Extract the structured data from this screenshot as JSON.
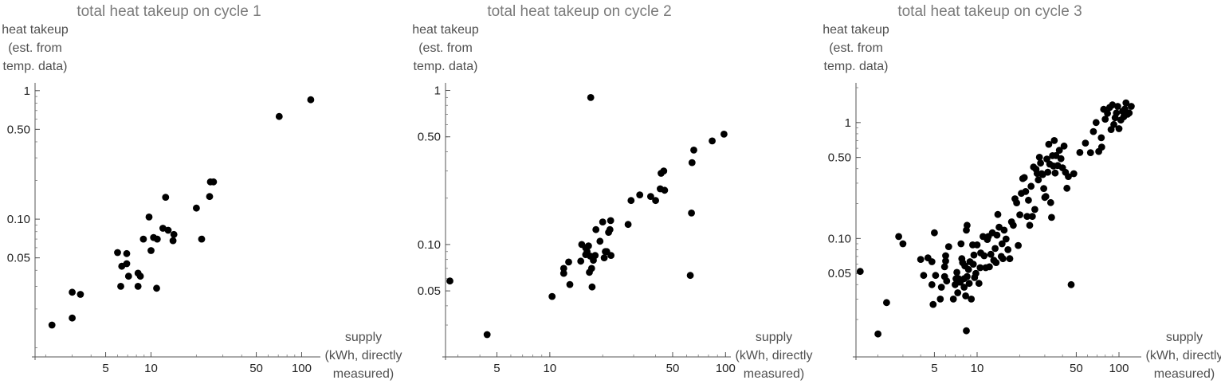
{
  "chart_data": [
    {
      "type": "scatter",
      "title": "total heat takeup on cycle 1",
      "ylabel": [
        "heat takeup",
        "(est. from",
        "temp. data)"
      ],
      "xlabel": [
        "supply",
        "(kWh, directly",
        "measured)"
      ],
      "xscale": "log",
      "yscale": "log",
      "xlim": [
        1.7,
        130
      ],
      "ylim": [
        0.0095,
        1.15
      ],
      "xticks": [
        5,
        10,
        50,
        100
      ],
      "xtick_labels": [
        "5",
        "10",
        "50",
        "100"
      ],
      "yticks": [
        0.05,
        0.1,
        0.5,
        1
      ],
      "ytick_labels": [
        "0.05",
        "0.10",
        "0.50",
        "1"
      ],
      "grid": false,
      "points": [
        [
          2.2,
          0.015
        ],
        [
          3.0,
          0.017
        ],
        [
          3.0,
          0.027
        ],
        [
          3.4,
          0.026
        ],
        [
          6.0,
          0.055
        ],
        [
          6.3,
          0.03
        ],
        [
          6.4,
          0.043
        ],
        [
          6.9,
          0.054
        ],
        [
          6.9,
          0.045
        ],
        [
          7.1,
          0.036
        ],
        [
          8.2,
          0.03
        ],
        [
          8.2,
          0.038
        ],
        [
          8.5,
          0.036
        ],
        [
          8.9,
          0.07
        ],
        [
          9.7,
          0.104
        ],
        [
          10.0,
          0.057
        ],
        [
          10.4,
          0.072
        ],
        [
          10.9,
          0.029
        ],
        [
          11.0,
          0.07
        ],
        [
          12.0,
          0.085
        ],
        [
          12.5,
          0.148
        ],
        [
          13.0,
          0.082
        ],
        [
          14.0,
          0.068
        ],
        [
          14.2,
          0.076
        ],
        [
          20.0,
          0.122
        ],
        [
          21.7,
          0.07
        ],
        [
          24.5,
          0.15
        ],
        [
          24.8,
          0.195
        ],
        [
          26.0,
          0.195
        ],
        [
          71.0,
          0.63
        ],
        [
          115.0,
          0.85
        ]
      ]
    },
    {
      "type": "scatter",
      "title": "total heat takeup on cycle 2",
      "ylabel": [
        "heat takeup",
        "(est. from",
        "temp. data)"
      ],
      "xlabel": [
        "supply",
        "(kWh, directly",
        "measured)"
      ],
      "xscale": "log",
      "yscale": "log",
      "xlim": [
        2.55,
        105
      ],
      "ylim": [
        0.0205,
        1.12
      ],
      "xticks": [
        5,
        10,
        50,
        100
      ],
      "xtick_labels": [
        "5",
        "10",
        "50",
        "100"
      ],
      "yticks": [
        0.05,
        0.1,
        0.5,
        1
      ],
      "ytick_labels": [
        "0.05",
        "0.10",
        "0.50",
        "1"
      ],
      "grid": false,
      "points": [
        [
          2.7,
          0.058
        ],
        [
          4.4,
          0.026
        ],
        [
          10.3,
          0.046
        ],
        [
          12.0,
          0.065
        ],
        [
          12.0,
          0.07
        ],
        [
          12.8,
          0.077
        ],
        [
          13.0,
          0.055
        ],
        [
          15.0,
          0.078
        ],
        [
          15.2,
          0.1
        ],
        [
          16.0,
          0.086
        ],
        [
          16.0,
          0.095
        ],
        [
          16.3,
          0.09
        ],
        [
          16.6,
          0.098
        ],
        [
          16.8,
          0.066
        ],
        [
          17.0,
          0.084
        ],
        [
          17.3,
          0.07
        ],
        [
          17.4,
          0.053
        ],
        [
          17.7,
          0.079
        ],
        [
          18.1,
          0.085
        ],
        [
          18.3,
          0.125
        ],
        [
          19.3,
          0.105
        ],
        [
          20.0,
          0.14
        ],
        [
          20.4,
          0.082
        ],
        [
          20.7,
          0.09
        ],
        [
          21.1,
          0.09
        ],
        [
          21.6,
          0.12
        ],
        [
          22.0,
          0.125
        ],
        [
          22.2,
          0.143
        ],
        [
          22.3,
          0.085
        ],
        [
          17.1,
          0.9
        ],
        [
          27.9,
          0.135
        ],
        [
          29.0,
          0.193
        ],
        [
          32.5,
          0.21
        ],
        [
          37.5,
          0.205
        ],
        [
          40.0,
          0.193
        ],
        [
          42.5,
          0.23
        ],
        [
          43.0,
          0.29
        ],
        [
          44.5,
          0.3
        ],
        [
          45.0,
          0.225
        ],
        [
          63.0,
          0.063
        ],
        [
          64.0,
          0.16
        ],
        [
          64.5,
          0.34
        ],
        [
          66.0,
          0.41
        ],
        [
          84.0,
          0.47
        ],
        [
          98.0,
          0.52
        ]
      ]
    },
    {
      "type": "scatter",
      "title": "total heat takeup on cycle 3",
      "ylabel": [
        "heat takeup",
        "(est. from",
        "temp. data)"
      ],
      "xlabel": [
        "supply",
        "(kWh, directly",
        "measured)"
      ],
      "xscale": "log",
      "yscale": "log",
      "xlim": [
        1.4,
        140
      ],
      "ylim": [
        0.0108,
        2.2
      ],
      "xticks": [
        5,
        10,
        50,
        100
      ],
      "xtick_labels": [
        "5",
        "10",
        "50",
        "100"
      ],
      "yticks": [
        0.05,
        0.1,
        0.5,
        1
      ],
      "ytick_labels": [
        "0.05",
        "0.10",
        "0.50",
        "1"
      ],
      "grid": false,
      "points": [
        [
          1.5,
          0.052
        ],
        [
          2.0,
          0.015
        ],
        [
          2.3,
          0.028
        ],
        [
          2.8,
          0.104
        ],
        [
          3.0,
          0.09
        ],
        [
          4.0,
          0.066
        ],
        [
          4.2,
          0.048
        ],
        [
          4.5,
          0.068
        ],
        [
          4.8,
          0.04
        ],
        [
          4.8,
          0.063
        ],
        [
          4.9,
          0.027
        ],
        [
          5.0,
          0.112
        ],
        [
          5.1,
          0.048
        ],
        [
          5.5,
          0.03
        ],
        [
          5.6,
          0.038
        ],
        [
          5.9,
          0.047
        ],
        [
          5.9,
          0.057
        ],
        [
          6.0,
          0.064
        ],
        [
          6.0,
          0.071
        ],
        [
          6.1,
          0.043
        ],
        [
          6.3,
          0.085
        ],
        [
          6.8,
          0.03
        ],
        [
          7.0,
          0.04
        ],
        [
          7.1,
          0.045
        ],
        [
          7.2,
          0.051
        ],
        [
          7.3,
          0.034
        ],
        [
          7.4,
          0.045
        ],
        [
          7.6,
          0.042
        ],
        [
          7.7,
          0.09
        ],
        [
          7.8,
          0.067
        ],
        [
          7.9,
          0.062
        ],
        [
          8.1,
          0.038
        ],
        [
          8.1,
          0.045
        ],
        [
          8.2,
          0.058
        ],
        [
          8.3,
          0.032
        ],
        [
          8.4,
          0.118
        ],
        [
          8.4,
          0.016
        ],
        [
          8.5,
          0.13
        ],
        [
          8.5,
          0.047
        ],
        [
          8.7,
          0.054
        ],
        [
          8.8,
          0.041
        ],
        [
          8.9,
          0.063
        ],
        [
          9.1,
          0.03
        ],
        [
          9.3,
          0.088
        ],
        [
          9.4,
          0.06
        ],
        [
          9.5,
          0.072
        ],
        [
          9.6,
          0.046
        ],
        [
          9.8,
          0.05
        ],
        [
          10.0,
          0.088
        ],
        [
          10.3,
          0.041
        ],
        [
          10.5,
          0.056
        ],
        [
          10.6,
          0.075
        ],
        [
          11.0,
          0.104
        ],
        [
          11.2,
          0.071
        ],
        [
          11.5,
          0.056
        ],
        [
          11.8,
          0.098
        ],
        [
          12.0,
          0.104
        ],
        [
          12.2,
          0.057
        ],
        [
          12.5,
          0.073
        ],
        [
          12.8,
          0.112
        ],
        [
          13.1,
          0.065
        ],
        [
          13.4,
          0.082
        ],
        [
          13.6,
          0.062
        ],
        [
          13.8,
          0.107
        ],
        [
          14.0,
          0.161
        ],
        [
          14.3,
          0.125
        ],
        [
          14.8,
          0.07
        ],
        [
          15.0,
          0.09
        ],
        [
          15.2,
          0.067
        ],
        [
          15.5,
          0.118
        ],
        [
          16.0,
          0.099
        ],
        [
          16.5,
          0.08
        ],
        [
          17.0,
          0.067
        ],
        [
          17.5,
          0.139
        ],
        [
          18.0,
          0.13
        ],
        [
          18.5,
          0.22
        ],
        [
          19.0,
          0.203
        ],
        [
          19.5,
          0.087
        ],
        [
          20.0,
          0.16
        ],
        [
          20.5,
          0.245
        ],
        [
          21.0,
          0.329
        ],
        [
          21.5,
          0.335
        ],
        [
          22.0,
          0.254
        ],
        [
          22.5,
          0.155
        ],
        [
          23.0,
          0.214
        ],
        [
          23.5,
          0.13
        ],
        [
          24.0,
          0.282
        ],
        [
          24.5,
          0.155
        ],
        [
          25.0,
          0.413
        ],
        [
          25.5,
          0.178
        ],
        [
          26.0,
          0.396
        ],
        [
          26.5,
          0.364
        ],
        [
          27.0,
          0.32
        ],
        [
          27.5,
          0.502
        ],
        [
          28.0,
          0.447
        ],
        [
          28.5,
          0.362
        ],
        [
          29.0,
          0.356
        ],
        [
          29.5,
          0.27
        ],
        [
          30.0,
          0.226
        ],
        [
          30.5,
          0.23
        ],
        [
          31.0,
          0.485
        ],
        [
          31.5,
          0.373
        ],
        [
          32.0,
          0.65
        ],
        [
          32.5,
          0.438
        ],
        [
          33.0,
          0.204
        ],
        [
          33.5,
          0.152
        ],
        [
          34.0,
          0.518
        ],
        [
          34.5,
          0.422
        ],
        [
          35.0,
          0.7
        ],
        [
          35.5,
          0.367
        ],
        [
          36.0,
          0.519
        ],
        [
          37.0,
          0.426
        ],
        [
          38.0,
          0.577
        ],
        [
          39.0,
          0.488
        ],
        [
          40.0,
          0.407
        ],
        [
          41.0,
          0.627
        ],
        [
          42.0,
          0.372
        ],
        [
          43.0,
          0.271
        ],
        [
          44.0,
          0.342
        ],
        [
          46.0,
          0.04
        ],
        [
          48.0,
          0.362
        ],
        [
          53.0,
          0.552
        ],
        [
          58.0,
          0.665
        ],
        [
          63.0,
          0.55
        ],
        [
          66.0,
          0.837
        ],
        [
          69.0,
          1.0
        ],
        [
          72.0,
          0.563
        ],
        [
          75.0,
          0.74
        ],
        [
          75.5,
          0.615
        ],
        [
          78.0,
          1.3
        ],
        [
          80.0,
          1.07
        ],
        [
          83.0,
          1.2
        ],
        [
          86.0,
          1.35
        ],
        [
          88.0,
          0.87
        ],
        [
          90.0,
          1.42
        ],
        [
          92.0,
          0.962
        ],
        [
          94.0,
          1.1
        ],
        [
          96.0,
          1.21
        ],
        [
          98.0,
          1.38
        ],
        [
          100.0,
          0.885
        ],
        [
          103.0,
          1.05
        ],
        [
          106.0,
          1.25
        ],
        [
          108.0,
          1.12
        ],
        [
          110.0,
          1.31
        ],
        [
          112.0,
          1.48
        ],
        [
          115.0,
          1.18
        ],
        [
          118.0,
          1.21
        ],
        [
          122.0,
          1.38
        ]
      ]
    }
  ]
}
